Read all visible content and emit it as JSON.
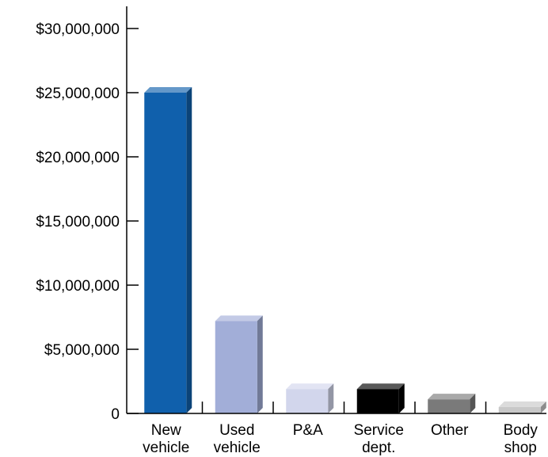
{
  "chart_data": {
    "type": "bar",
    "title": "",
    "xlabel": "",
    "ylabel": "",
    "categories": [
      [
        "New",
        "vehicle"
      ],
      [
        "Used",
        "vehicle"
      ],
      [
        "P&A"
      ],
      [
        "Service",
        "dept."
      ],
      [
        "Other"
      ],
      [
        "Body",
        "shop"
      ]
    ],
    "values": [
      25000000,
      7200000,
      1900000,
      1900000,
      1100000,
      500000
    ],
    "colors": [
      "#1060ac",
      "#a2aed8",
      "#d2d6ec",
      "#000000",
      "#7a7a7a",
      "#c8c8c8"
    ],
    "ylim": [
      0,
      30000000
    ],
    "yticks": [
      0,
      5000000,
      10000000,
      15000000,
      20000000,
      25000000,
      30000000
    ],
    "ytick_labels": [
      "0",
      "$5,000,000",
      "$10,000,000",
      "$15,000,000",
      "$20,000,000",
      "$25,000,000",
      "$30,000,000"
    ],
    "grid": false,
    "legend": "none",
    "style": "3d"
  }
}
